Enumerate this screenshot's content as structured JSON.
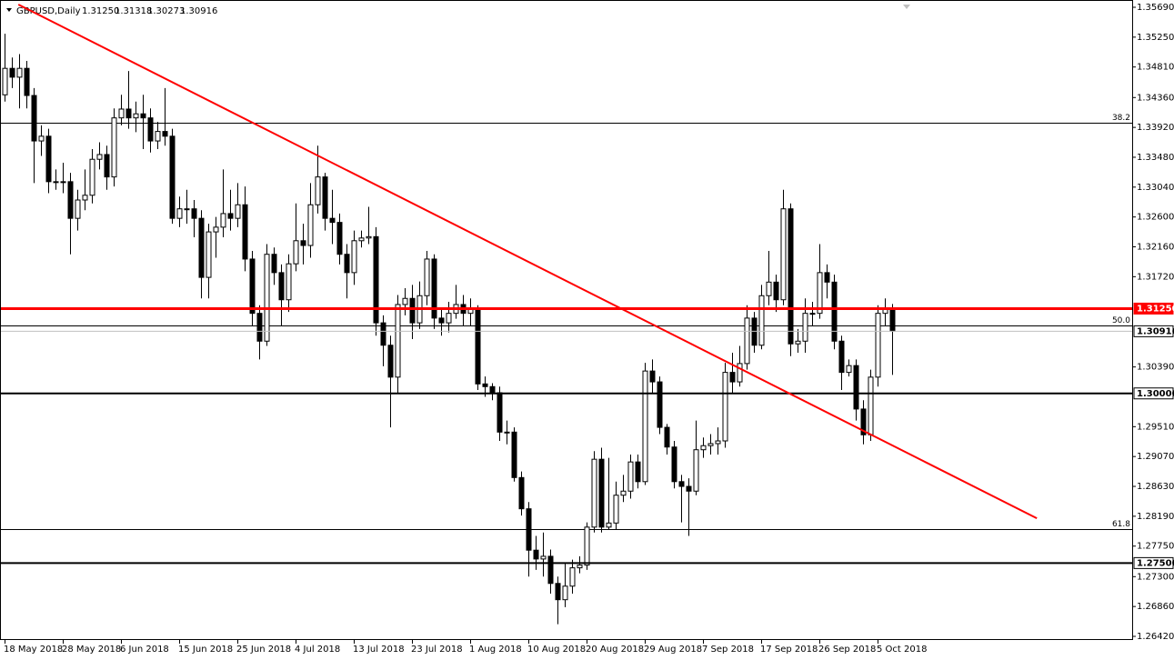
{
  "chart_data": {
    "type": "candlestick",
    "title": "GBPUSD,Daily",
    "header_values": [
      "1.31250",
      "1.31318",
      "1.30273",
      "1.30916"
    ],
    "categories": [
      "18 May 2018",
      null,
      null,
      null,
      null,
      null,
      null,
      null,
      "28 May 2018",
      null,
      null,
      null,
      null,
      null,
      null,
      null,
      "6 Jun 2018",
      null,
      null,
      null,
      null,
      null,
      null,
      null,
      "15 Jun 2018",
      null,
      null,
      null,
      null,
      null,
      null,
      null,
      "25 Jun 2018",
      null,
      null,
      null,
      null,
      null,
      null,
      null,
      "4 Jul 2018",
      null,
      null,
      null,
      null,
      null,
      null,
      null,
      "13 Jul 2018",
      null,
      null,
      null,
      null,
      null,
      null,
      null,
      "23 Jul 2018",
      null,
      null,
      null,
      null,
      null,
      null,
      null,
      "1 Aug 2018",
      null,
      null,
      null,
      null,
      null,
      null,
      null,
      "10 Aug 2018",
      null,
      null,
      null,
      null,
      null,
      null,
      null,
      "20 Aug 2018",
      null,
      null,
      null,
      null,
      null,
      null,
      null,
      "29 Aug 2018",
      null,
      null,
      null,
      null,
      null,
      null,
      null,
      "7 Sep 2018",
      null,
      null,
      null,
      null,
      null,
      null,
      null,
      "17 Sep 2018",
      null,
      null,
      null,
      null,
      null,
      null,
      null,
      "26 Sep 2018",
      null,
      null,
      null,
      null,
      null,
      null,
      null,
      "5 Oct 2018",
      null,
      null
    ],
    "open": [
      1.344,
      1.3479,
      1.3466,
      1.3479,
      1.3439,
      1.3372,
      1.3379,
      1.3312,
      1.3312,
      1.3312,
      1.3258,
      1.3285,
      1.3292,
      1.3345,
      1.3352,
      1.3319,
      1.3406,
      1.3419,
      1.3406,
      1.3412,
      1.3406,
      1.3372,
      1.3386,
      1.3379,
      1.3258,
      1.3272,
      1.3272,
      1.3258,
      1.3171,
      1.3238,
      1.3245,
      1.3265,
      1.3258,
      1.3278,
      1.3198,
      1.3118,
      1.3077,
      1.3205,
      1.3178,
      1.3138,
      1.3191,
      1.3225,
      1.3218,
      1.3278,
      1.3319,
      1.3258,
      1.3252,
      1.3205,
      1.3178,
      1.3225,
      1.3229,
      1.3231,
      1.3104,
      1.3071,
      1.3024,
      1.3131,
      1.314,
      1.3104,
      1.3144,
      1.3198,
      1.3111,
      1.3104,
      1.3118,
      1.3131,
      1.3118,
      1.3124,
      1.3014,
      1.301,
      1.3001,
      1.2943,
      1.2943,
      1.2876,
      1.283,
      1.2769,
      1.2756,
      1.276,
      1.272,
      1.2696,
      1.2716,
      1.2743,
      1.2747,
      1.2803,
      1.2903,
      1.2803,
      1.2809,
      1.285,
      1.2856,
      1.2899,
      1.287,
      1.3033,
      1.3017,
      1.295,
      1.2921,
      1.287,
      1.2863,
      1.2856,
      1.2917,
      1.2923,
      1.2926,
      1.293,
      1.3031,
      1.3017,
      1.3044,
      1.3111,
      1.3071,
      1.3144,
      1.3164,
      1.3138,
      1.3272,
      1.3073,
      1.3077,
      1.3118,
      1.3118,
      1.3178,
      1.3164,
      1.3077,
      1.3031,
      1.3041,
      1.2977,
      1.2939,
      1.3024,
      1.3118,
      1.3125
    ],
    "high": [
      1.353,
      1.3495,
      1.35,
      1.349,
      1.345,
      1.3395,
      1.339,
      1.333,
      1.334,
      1.3325,
      1.33,
      1.333,
      1.336,
      1.337,
      1.3365,
      1.342,
      1.344,
      1.3475,
      1.343,
      1.344,
      1.342,
      1.34,
      1.345,
      1.339,
      1.329,
      1.33,
      1.3285,
      1.327,
      1.325,
      1.326,
      1.333,
      1.33,
      1.331,
      1.3305,
      1.321,
      1.313,
      1.322,
      1.3215,
      1.319,
      1.3205,
      1.328,
      1.325,
      1.331,
      1.3365,
      1.3325,
      1.33,
      1.3265,
      1.322,
      1.324,
      1.324,
      1.3275,
      1.3245,
      1.3115,
      1.3085,
      1.3145,
      1.3155,
      1.316,
      1.3165,
      1.321,
      1.3205,
      1.3125,
      1.3135,
      1.316,
      1.3145,
      1.314,
      1.313,
      1.3025,
      1.3015,
      1.301,
      1.296,
      1.295,
      1.2885,
      1.284,
      1.279,
      1.2795,
      1.277,
      1.273,
      1.275,
      1.2755,
      1.276,
      1.281,
      1.2915,
      1.292,
      1.2905,
      1.287,
      1.288,
      1.291,
      1.291,
      1.3045,
      1.305,
      1.3025,
      1.2955,
      1.293,
      1.288,
      1.2875,
      1.296,
      1.2935,
      1.294,
      1.295,
      1.3045,
      1.306,
      1.307,
      1.313,
      1.312,
      1.316,
      1.321,
      1.3175,
      1.33,
      1.328,
      1.3095,
      1.314,
      1.3135,
      1.322,
      1.319,
      1.3175,
      1.3085,
      1.305,
      1.305,
      1.299,
      1.3035,
      1.313,
      1.314,
      1.31318
    ],
    "low": [
      1.343,
      1.345,
      1.342,
      1.342,
      1.331,
      1.335,
      1.3295,
      1.33,
      1.3295,
      1.3205,
      1.324,
      1.327,
      1.328,
      1.333,
      1.33,
      1.3305,
      1.3395,
      1.339,
      1.3385,
      1.336,
      1.3355,
      1.336,
      1.3365,
      1.325,
      1.3245,
      1.325,
      1.323,
      1.314,
      1.314,
      1.32,
      1.323,
      1.324,
      1.3245,
      1.318,
      1.31,
      1.305,
      1.307,
      1.316,
      1.31,
      1.312,
      1.318,
      1.319,
      1.32,
      1.3265,
      1.324,
      1.322,
      1.319,
      1.314,
      1.316,
      1.3215,
      1.322,
      1.3085,
      1.304,
      1.295,
      1.3,
      1.3115,
      1.308,
      1.3095,
      1.313,
      1.3095,
      1.3085,
      1.309,
      1.311,
      1.31,
      1.31,
      1.3005,
      1.2995,
      1.299,
      1.293,
      1.2925,
      1.287,
      1.282,
      1.273,
      1.274,
      1.273,
      1.2705,
      1.266,
      1.2685,
      1.2705,
      1.2735,
      1.274,
      1.2795,
      1.2795,
      1.28,
      1.28,
      1.284,
      1.2845,
      1.286,
      1.2865,
      1.3,
      1.294,
      1.291,
      1.286,
      1.281,
      1.279,
      1.285,
      1.2905,
      1.291,
      1.291,
      1.292,
      1.3,
      1.301,
      1.3035,
      1.306,
      1.3065,
      1.313,
      1.312,
      1.313,
      1.3055,
      1.306,
      1.306,
      1.31,
      1.311,
      1.314,
      1.3065,
      1.3005,
      1.3025,
      1.296,
      1.2925,
      1.293,
      1.301,
      1.31,
      1.30273
    ],
    "close": [
      1.3479,
      1.3466,
      1.3479,
      1.3439,
      1.3372,
      1.3379,
      1.3312,
      1.3312,
      1.3312,
      1.3258,
      1.3285,
      1.3292,
      1.3345,
      1.3352,
      1.3319,
      1.3406,
      1.3419,
      1.3406,
      1.3412,
      1.3406,
      1.3372,
      1.3386,
      1.3379,
      1.3258,
      1.3272,
      1.3272,
      1.3258,
      1.3171,
      1.3238,
      1.3245,
      1.3265,
      1.3258,
      1.3278,
      1.3198,
      1.3118,
      1.3077,
      1.3205,
      1.3178,
      1.3138,
      1.3191,
      1.3225,
      1.3218,
      1.3278,
      1.3319,
      1.3258,
      1.3252,
      1.3205,
      1.3178,
      1.3225,
      1.3229,
      1.3231,
      1.3104,
      1.3071,
      1.3024,
      1.3131,
      1.314,
      1.3104,
      1.3144,
      1.3198,
      1.3111,
      1.3104,
      1.3118,
      1.3131,
      1.3118,
      1.3124,
      1.3014,
      1.301,
      1.3001,
      1.2943,
      1.2943,
      1.2876,
      1.283,
      1.2769,
      1.2756,
      1.276,
      1.272,
      1.2696,
      1.2716,
      1.2743,
      1.2747,
      1.2803,
      1.2903,
      1.2803,
      1.2809,
      1.285,
      1.2856,
      1.2899,
      1.287,
      1.3033,
      1.3017,
      1.295,
      1.2921,
      1.287,
      1.2863,
      1.2856,
      1.2917,
      1.2923,
      1.2926,
      1.293,
      1.3031,
      1.3017,
      1.3044,
      1.3111,
      1.3071,
      1.3144,
      1.3164,
      1.3138,
      1.3272,
      1.3073,
      1.3077,
      1.3118,
      1.3118,
      1.3178,
      1.3164,
      1.3077,
      1.3031,
      1.3041,
      1.2977,
      1.2939,
      1.3024,
      1.3118,
      1.3125,
      1.30916
    ],
    "up_color": "#ffffff",
    "down_color": "#000000",
    "ylim": [
      1.2642,
      1.3569
    ],
    "yticks": [
      {
        "value": 1.3569,
        "label": "1.35690"
      },
      {
        "value": 1.3525,
        "label": "1.35250"
      },
      {
        "value": 1.3481,
        "label": "1.34810"
      },
      {
        "value": 1.3436,
        "label": "1.34360"
      },
      {
        "value": 1.3392,
        "label": "1.33920"
      },
      {
        "value": 1.3348,
        "label": "1.33480"
      },
      {
        "value": 1.3304,
        "label": "1.33040"
      },
      {
        "value": 1.326,
        "label": "1.32600"
      },
      {
        "value": 1.3216,
        "label": "1.32160"
      },
      {
        "value": 1.3172,
        "label": "1.31720"
      },
      {
        "value": 1.3039,
        "label": "1.30390"
      },
      {
        "value": 1.2951,
        "label": "1.29510"
      },
      {
        "value": 1.2907,
        "label": "1.29070"
      },
      {
        "value": 1.2863,
        "label": "1.28630"
      },
      {
        "value": 1.2819,
        "label": "1.28190"
      },
      {
        "value": 1.2775,
        "label": "1.27750"
      },
      {
        "value": 1.273,
        "label": "1.27300"
      },
      {
        "value": 1.2686,
        "label": "1.26860"
      },
      {
        "value": 1.2642,
        "label": "1.26420"
      }
    ],
    "fib_levels": [
      {
        "label": "38.2",
        "value": 1.3399
      },
      {
        "label": "50.0",
        "value": 1.31
      },
      {
        "label": "61.8",
        "value": 1.28
      }
    ],
    "price_levels": [
      {
        "label": "1.31250",
        "value": 1.3125,
        "color": "#ff0000",
        "line_width": 3,
        "box_fill": "#ff0000",
        "box_text": "#ffffff"
      },
      {
        "label": "1.30000",
        "value": 1.3,
        "color": "#000000",
        "line_width": 2,
        "box_fill": "#ffffff",
        "box_text": "#000000"
      },
      {
        "label": "1.27500",
        "value": 1.275,
        "color": "#000000",
        "line_width": 2,
        "box_fill": "#ffffff",
        "box_text": "#000000"
      },
      {
        "label": "1.30916",
        "value": 1.30916,
        "color": "#c0c0c0",
        "line_width": 1,
        "box_fill": "#ffffff",
        "box_text": "#000000"
      }
    ],
    "trendline": {
      "color": "#ff0000",
      "x": [
        1.9,
        141.9
      ],
      "y": [
        1.3573,
        1.2816
      ]
    }
  }
}
